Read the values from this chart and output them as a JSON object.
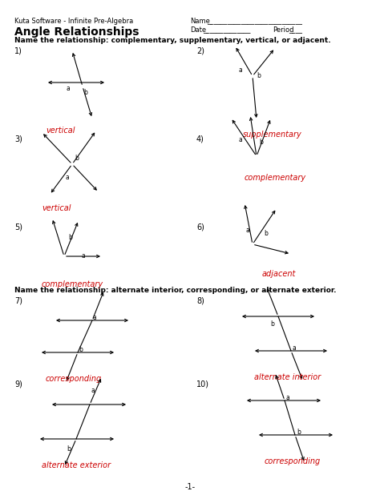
{
  "title": "Angle Relationships",
  "subtitle": "Kuta Software - Infinite Pre-Algebra",
  "name_label": "Name",
  "name_line": "____________________________",
  "date_label": "Date",
  "date_line": "______________",
  "period_label": "Period",
  "period_line": "____",
  "instruction1": "Name the relationship: complementary, supplementary, vertical, or adjacent.",
  "instruction2": "Name the relationship: alternate interior, corresponding, or alternate exterior.",
  "page_num": "-1-",
  "answers": {
    "1": "vertical",
    "2": "supplementary",
    "3": "vertical",
    "4": "complementary",
    "5": "complementary",
    "6": "adjacent",
    "7": "corresponding",
    "8": "alternate interior",
    "9": "alternate exterior",
    "10": "corresponding"
  },
  "answer_color": "#cc0000",
  "text_color": "#000000",
  "bg_color": "#ffffff"
}
